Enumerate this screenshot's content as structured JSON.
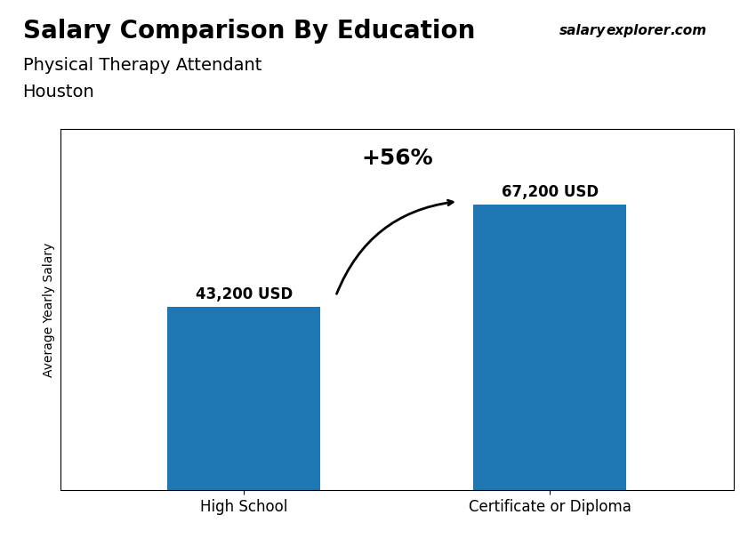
{
  "chart_data": {
    "type": "bar",
    "title": "Salary Comparison By Education",
    "subtitle": [
      "Physical Therapy Attendant",
      "Houston"
    ],
    "ylabel": "Average Yearly Salary",
    "categories": [
      "High School",
      "Certificate or Diploma"
    ],
    "values": [
      43200,
      67200
    ],
    "value_labels": [
      "43,200 USD",
      "67,200 USD"
    ],
    "data_labels": true,
    "annotations": [
      "salary",
      "explorer",
      ".com",
      "+56%"
    ],
    "ylim": [
      0,
      85000
    ],
    "tick_labels": "x",
    "grid": false
  }
}
